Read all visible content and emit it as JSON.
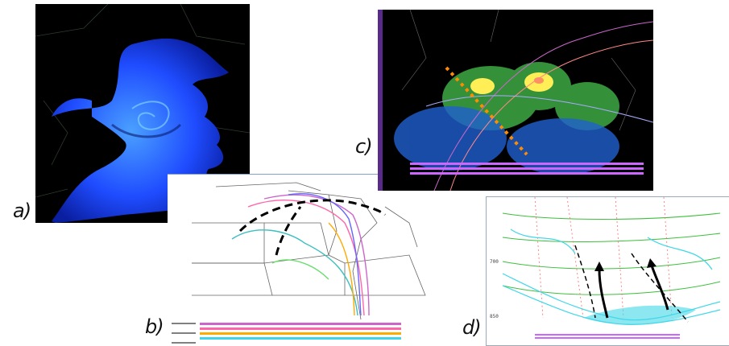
{
  "panels": [
    {
      "id": "a",
      "label": "a)"
    },
    {
      "id": "b",
      "label": "b)"
    },
    {
      "id": "c",
      "label": "c)"
    },
    {
      "id": "d",
      "label": "d)"
    }
  ],
  "panel_d": {
    "y_ticks": [
      "700",
      "850"
    ]
  },
  "colors": {
    "radar_bg": "#000000",
    "satellite_blue": "#1f4cff",
    "map_background": "#ffffff",
    "cross_section_cyan": "#3fd7e8",
    "cross_section_green": "#3cbf3c",
    "dashed_orange": "#ff8c00"
  }
}
